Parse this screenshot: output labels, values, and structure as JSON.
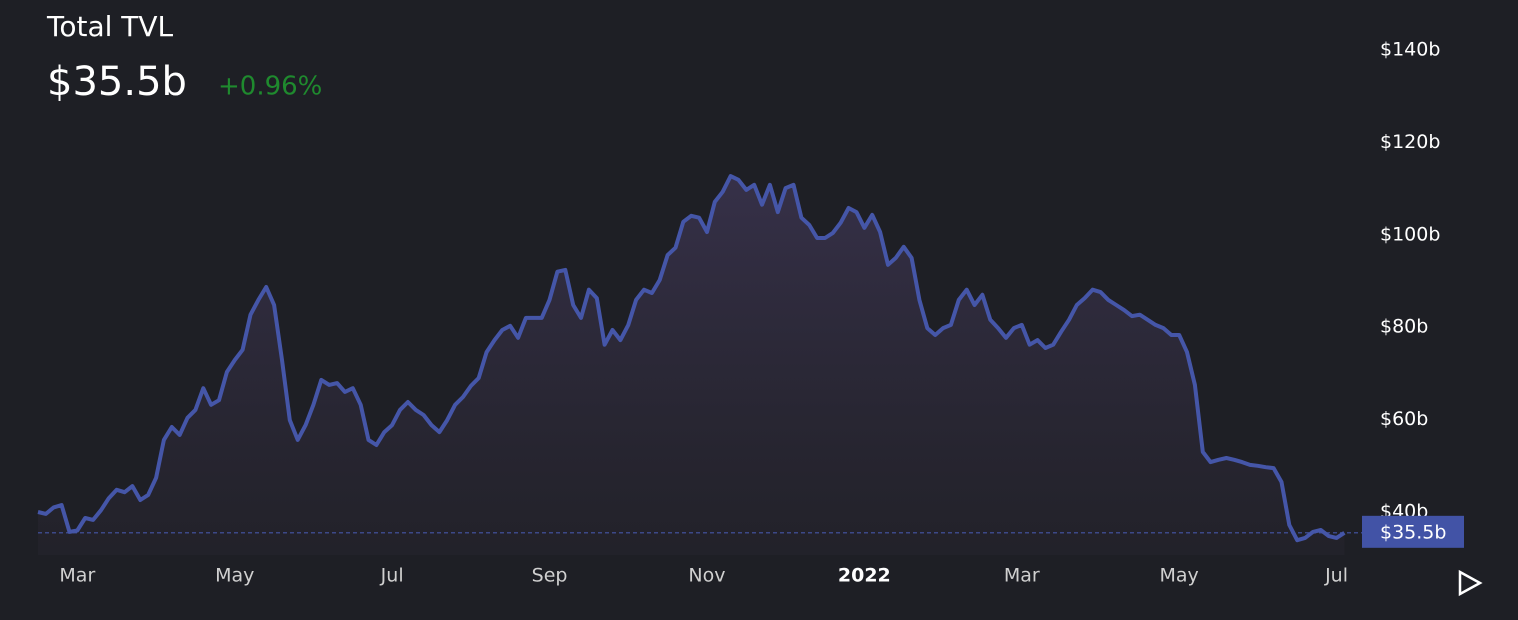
{
  "chart_data": {
    "type": "line",
    "title": "Total TVL",
    "current": {
      "value": 35.5,
      "label": "$35.5b"
    },
    "change": "+0.96%",
    "color": "#4556a8",
    "ylim": [
      30.7,
      150.8
    ],
    "yticks": [
      {
        "value": 40,
        "label": "$40b"
      },
      {
        "value": 60,
        "label": "$60b"
      },
      {
        "value": 80,
        "label": "$80b"
      },
      {
        "value": 100,
        "label": "$100b"
      },
      {
        "value": 120,
        "label": "$120b"
      },
      {
        "value": 140,
        "label": "$140b"
      }
    ],
    "categories": [
      null,
      null,
      null,
      null,
      null,
      "Mar",
      null,
      null,
      null,
      null,
      null,
      null,
      null,
      null,
      null,
      null,
      null,
      null,
      null,
      null,
      null,
      null,
      null,
      null,
      null,
      "May",
      null,
      null,
      null,
      null,
      null,
      null,
      null,
      null,
      null,
      null,
      null,
      null,
      null,
      null,
      null,
      null,
      null,
      null,
      null,
      "Jul",
      null,
      null,
      null,
      null,
      null,
      null,
      null,
      null,
      null,
      null,
      null,
      null,
      null,
      null,
      null,
      null,
      null,
      null,
      null,
      "Sep",
      null,
      null,
      null,
      null,
      null,
      null,
      null,
      null,
      null,
      null,
      null,
      null,
      null,
      null,
      null,
      null,
      null,
      null,
      null,
      "Nov",
      null,
      null,
      null,
      null,
      null,
      null,
      null,
      null,
      null,
      null,
      null,
      null,
      null,
      null,
      null,
      null,
      null,
      null,
      null,
      "2022",
      null,
      null,
      null,
      null,
      null,
      null,
      null,
      null,
      null,
      null,
      null,
      null,
      null,
      null,
      null,
      null,
      null,
      null,
      null,
      "Mar",
      null,
      null,
      null,
      null,
      null,
      null,
      null,
      null,
      null,
      null,
      null,
      null,
      null,
      null,
      null,
      null,
      null,
      null,
      null,
      "May",
      null,
      null,
      null,
      null,
      null,
      null,
      null,
      null,
      null,
      null,
      null,
      null,
      null,
      null,
      null,
      null,
      null,
      null,
      null,
      "Jul",
      null
    ],
    "values": [
      40,
      39.6,
      41,
      41.5,
      35.7,
      36,
      38.7,
      38.3,
      40.4,
      43,
      44.8,
      44.3,
      45.6,
      42.6,
      43.7,
      47.4,
      55.6,
      58.4,
      56.7,
      60.4,
      62.1,
      66.8,
      63.2,
      64.2,
      70.3,
      72.9,
      75.1,
      82.7,
      85.9,
      88.7,
      84.8,
      72.9,
      59.9,
      55.6,
      58.8,
      63.2,
      68.6,
      67.5,
      67.9,
      66,
      66.8,
      63.2,
      55.6,
      54.5,
      57.3,
      58.8,
      62.1,
      63.8,
      62.1,
      61,
      58.8,
      57.3,
      59.9,
      63.2,
      64.9,
      67.3,
      69,
      74.6,
      77.2,
      79.4,
      80.3,
      77.7,
      82,
      82,
      82,
      85.9,
      92,
      92.4,
      84.8,
      82,
      88.1,
      86.3,
      76.2,
      79.4,
      77.2,
      80.5,
      85.9,
      88.1,
      87.4,
      90.2,
      95.6,
      97.2,
      102.8,
      104.1,
      103.7,
      100.6,
      107.1,
      109.3,
      112.7,
      111.9,
      109.7,
      110.8,
      106.5,
      110.8,
      104.9,
      110.1,
      110.8,
      103.7,
      102.1,
      99.3,
      99.3,
      100.4,
      102.6,
      105.8,
      104.9,
      101.5,
      104.3,
      100.6,
      93.5,
      95,
      97.4,
      95,
      85.9,
      79.8,
      78.3,
      79.8,
      80.5,
      85.9,
      88.1,
      84.8,
      87,
      81.6,
      79.8,
      77.7,
      79.8,
      80.5,
      76.2,
      77.2,
      75.5,
      76.2,
      79,
      81.6,
      84.8,
      86.3,
      88.1,
      87.6,
      85.9,
      84.8,
      83.7,
      82.4,
      82.7,
      81.6,
      80.5,
      79.8,
      78.3,
      78.3,
      74.6,
      67.5,
      53,
      50.8,
      51.3,
      51.7,
      51.3,
      50.8,
      50.2,
      50,
      49.7,
      49.5,
      46.5,
      37.2,
      33.9,
      34.4,
      35.7,
      36.1,
      34.8,
      34.4,
      35.5
    ]
  }
}
